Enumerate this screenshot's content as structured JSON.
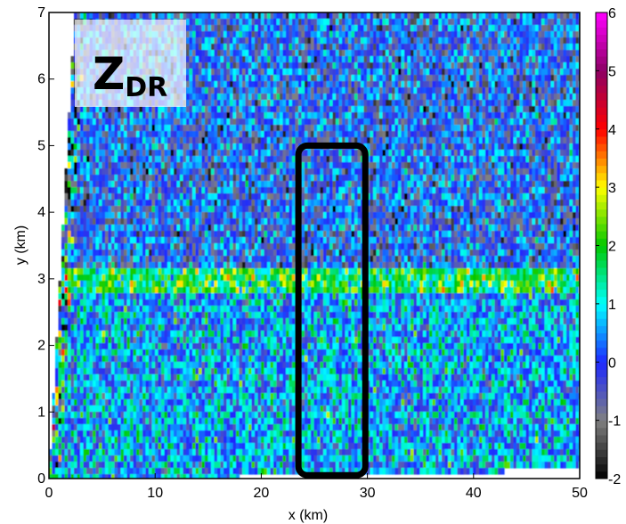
{
  "chart_data": {
    "type": "heatmap",
    "title": "",
    "variable_label": {
      "main": "Z",
      "subscript": "DR"
    },
    "xlabel": "x (km)",
    "ylabel": "y (km)",
    "xlim": [
      0,
      50
    ],
    "ylim": [
      0,
      7
    ],
    "x_ticks": [
      0,
      10,
      20,
      30,
      40,
      50
    ],
    "y_ticks": [
      0,
      1,
      2,
      3,
      4,
      5,
      6,
      7
    ],
    "colorbar": {
      "range": [
        -2,
        6
      ],
      "ticks": [
        -2,
        -1,
        0,
        1,
        2,
        3,
        4,
        5,
        6
      ],
      "colors": [
        "#000000",
        "#808080",
        "#1e28ff",
        "#00ffff",
        "#00c800",
        "#ffff00",
        "#ff0000",
        "#8c0064",
        "#ff00ff"
      ]
    },
    "layers": [
      {
        "y_range": [
          0,
          2.8
        ],
        "dominant_value": 0.8,
        "dominant_color": "#28c828"
      },
      {
        "y_range": [
          2.8,
          3.2
        ],
        "dominant_value": 1.8,
        "dominant_color": "#e0a000"
      },
      {
        "y_range": [
          3.2,
          7
        ],
        "dominant_value": -0.2,
        "dominant_color": "#2f6cff"
      }
    ],
    "highlight_box": {
      "x_range": [
        23.5,
        29.8
      ],
      "y_range": [
        0.05,
        5.0
      ]
    },
    "grid": false,
    "legend": "colorbar-right"
  }
}
